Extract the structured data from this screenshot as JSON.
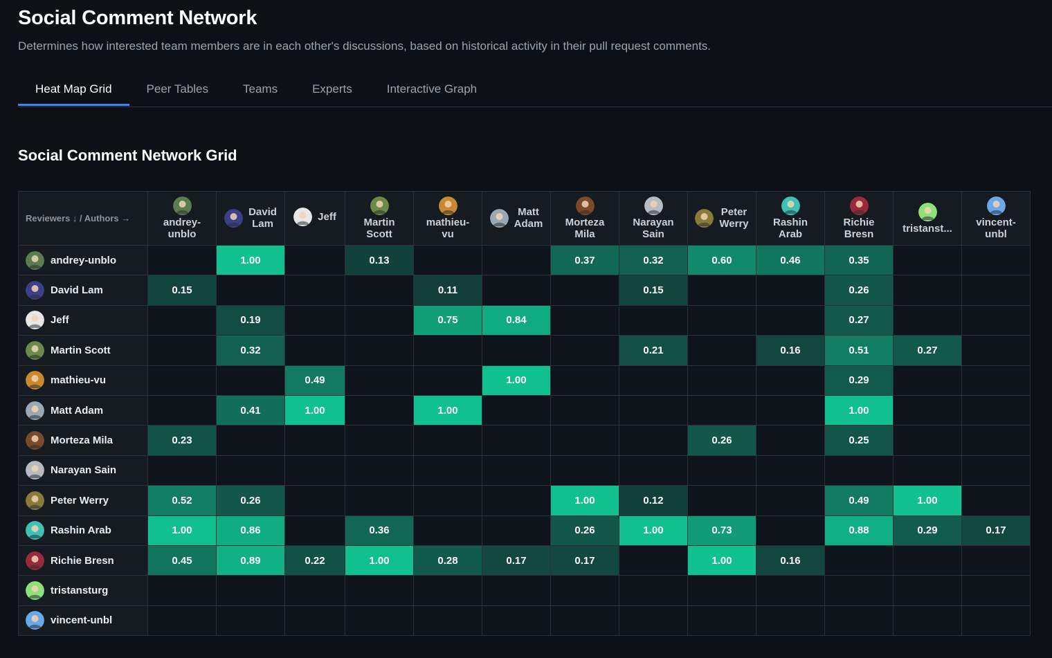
{
  "header": {
    "title": "Social Comment Network",
    "subtitle": "Determines how interested team members are in each other's discussions, based on historical activity in their pull request comments."
  },
  "tabs": [
    {
      "label": "Heat Map Grid",
      "active": true
    },
    {
      "label": "Peer Tables",
      "active": false
    },
    {
      "label": "Teams",
      "active": false
    },
    {
      "label": "Experts",
      "active": false
    },
    {
      "label": "Interactive Graph",
      "active": false
    }
  ],
  "grid": {
    "title": "Social Comment Network Grid",
    "corner_label": "Reviewers ↓ / Authors →",
    "colors": {
      "low": "#0f141a",
      "high": "#10c08e"
    },
    "columns": [
      {
        "line1": "andrey-",
        "line2": "unblo",
        "layout": "stack",
        "avatar_color": "#5a7d4f"
      },
      {
        "line1": "David",
        "line2": "Lam",
        "layout": "side",
        "avatar_color": "#3b3f8a"
      },
      {
        "line1": "Jeff",
        "line2": "",
        "layout": "side",
        "avatar_color": "#e8e8e8"
      },
      {
        "line1": "Martin",
        "line2": "Scott",
        "layout": "stack",
        "avatar_color": "#6a8a4a"
      },
      {
        "line1": "mathieu-",
        "line2": "vu",
        "layout": "stack",
        "avatar_color": "#c98a2e"
      },
      {
        "line1": "Matt",
        "line2": "Adam",
        "layout": "side",
        "avatar_color": "#9aa7b5"
      },
      {
        "line1": "Morteza",
        "line2": "Mila",
        "layout": "stack",
        "avatar_color": "#7a4a2a"
      },
      {
        "line1": "Narayan",
        "line2": "Sain",
        "layout": "stack",
        "avatar_color": "#b8bcc2"
      },
      {
        "line1": "Peter",
        "line2": "Werry",
        "layout": "side",
        "avatar_color": "#8a7a3a"
      },
      {
        "line1": "Rashin",
        "line2": "Arab",
        "layout": "stack",
        "avatar_color": "#3ec2b5"
      },
      {
        "line1": "Richie",
        "line2": "Bresn",
        "layout": "stack",
        "avatar_color": "#9a2a3a"
      },
      {
        "line1": "tristanst...",
        "line2": "",
        "layout": "stack",
        "avatar_color": "#8ee07a"
      },
      {
        "line1": "vincent-",
        "line2": "unbl",
        "layout": "stack",
        "avatar_color": "#6aa8e8"
      }
    ],
    "rows": [
      {
        "name": "andrey-unblo",
        "avatar_color": "#5a7d4f",
        "values": [
          null,
          1.0,
          null,
          0.13,
          null,
          null,
          0.37,
          0.32,
          0.6,
          0.46,
          0.35,
          null,
          null
        ]
      },
      {
        "name": "David Lam",
        "avatar_color": "#3b3f8a",
        "values": [
          0.15,
          null,
          null,
          null,
          0.11,
          null,
          null,
          0.15,
          null,
          null,
          0.26,
          null,
          null
        ]
      },
      {
        "name": "Jeff",
        "avatar_color": "#e8e8e8",
        "values": [
          null,
          0.19,
          null,
          null,
          0.75,
          0.84,
          null,
          null,
          null,
          null,
          0.27,
          null,
          null
        ]
      },
      {
        "name": "Martin Scott",
        "avatar_color": "#6a8a4a",
        "values": [
          null,
          0.32,
          null,
          null,
          null,
          null,
          null,
          0.21,
          null,
          0.16,
          0.51,
          0.27,
          null
        ]
      },
      {
        "name": "mathieu-vu",
        "avatar_color": "#c98a2e",
        "values": [
          null,
          null,
          0.49,
          null,
          null,
          1.0,
          null,
          null,
          null,
          null,
          0.29,
          null,
          null
        ]
      },
      {
        "name": "Matt Adam",
        "avatar_color": "#9aa7b5",
        "values": [
          null,
          0.41,
          1.0,
          null,
          1.0,
          null,
          null,
          null,
          null,
          null,
          1.0,
          null,
          null
        ]
      },
      {
        "name": "Morteza Mila",
        "avatar_color": "#7a4a2a",
        "values": [
          0.23,
          null,
          null,
          null,
          null,
          null,
          null,
          null,
          0.26,
          null,
          0.25,
          null,
          null
        ]
      },
      {
        "name": "Narayan Sain",
        "avatar_color": "#b8bcc2",
        "values": [
          null,
          null,
          null,
          null,
          null,
          null,
          null,
          null,
          null,
          null,
          null,
          null,
          null
        ]
      },
      {
        "name": "Peter Werry",
        "avatar_color": "#8a7a3a",
        "values": [
          0.52,
          0.26,
          null,
          null,
          null,
          null,
          1.0,
          0.12,
          null,
          null,
          0.49,
          1.0,
          null
        ]
      },
      {
        "name": "Rashin Arab",
        "avatar_color": "#3ec2b5",
        "values": [
          1.0,
          0.86,
          null,
          0.36,
          null,
          null,
          0.26,
          1.0,
          0.73,
          null,
          0.88,
          0.29,
          0.17
        ]
      },
      {
        "name": "Richie Bresn",
        "avatar_color": "#9a2a3a",
        "values": [
          0.45,
          0.89,
          0.22,
          1.0,
          0.28,
          0.17,
          0.17,
          null,
          1.0,
          0.16,
          null,
          null,
          null
        ]
      },
      {
        "name": "tristansturg",
        "avatar_color": "#8ee07a",
        "values": [
          null,
          null,
          null,
          null,
          null,
          null,
          null,
          null,
          null,
          null,
          null,
          null,
          null
        ]
      },
      {
        "name": "vincent-unbl",
        "avatar_color": "#6aa8e8",
        "values": [
          null,
          null,
          null,
          null,
          null,
          null,
          null,
          null,
          null,
          null,
          null,
          null,
          null
        ]
      }
    ]
  }
}
